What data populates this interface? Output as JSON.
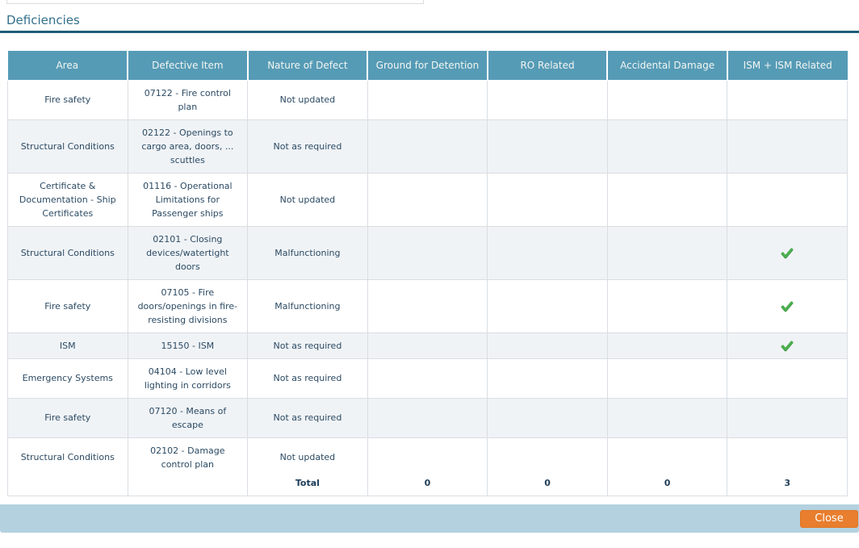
{
  "page": {
    "title": "Deficiencies"
  },
  "table": {
    "columns": [
      {
        "key": "area",
        "label": "Area"
      },
      {
        "key": "defective_item",
        "label": "Defective Item"
      },
      {
        "key": "nature_of_defect",
        "label": "Nature of Defect"
      },
      {
        "key": "ground_for_detention",
        "label": "Ground for Detention"
      },
      {
        "key": "ro_related",
        "label": "RO Related"
      },
      {
        "key": "accidental_damage",
        "label": "Accidental Damage"
      },
      {
        "key": "ism_ism_related",
        "label": "ISM + ISM Related"
      }
    ],
    "rows": [
      {
        "area": "Fire safety",
        "defective_item": "07122 - Fire control plan",
        "nature_of_defect": "Not updated",
        "ground_for_detention": false,
        "ro_related": false,
        "accidental_damage": false,
        "ism_ism_related": false
      },
      {
        "area": "Structural Conditions",
        "defective_item": "02122 - Openings to cargo area, doors, ... scuttles",
        "nature_of_defect": "Not as required",
        "ground_for_detention": false,
        "ro_related": false,
        "accidental_damage": false,
        "ism_ism_related": false
      },
      {
        "area": "Certificate & Documentation - Ship Certificates",
        "defective_item": "01116 - Operational Limitations for Passenger ships",
        "nature_of_defect": "Not updated",
        "ground_for_detention": false,
        "ro_related": false,
        "accidental_damage": false,
        "ism_ism_related": false
      },
      {
        "area": "Structural Conditions",
        "defective_item": "02101 - Closing devices/watertight doors",
        "nature_of_defect": "Malfunctioning",
        "ground_for_detention": false,
        "ro_related": false,
        "accidental_damage": false,
        "ism_ism_related": true
      },
      {
        "area": "Fire safety",
        "defective_item": "07105 - Fire doors/openings in fire-resisting divisions",
        "nature_of_defect": "Malfunctioning",
        "ground_for_detention": false,
        "ro_related": false,
        "accidental_damage": false,
        "ism_ism_related": true
      },
      {
        "area": "ISM",
        "defective_item": "15150 - ISM",
        "nature_of_defect": "Not as required",
        "ground_for_detention": false,
        "ro_related": false,
        "accidental_damage": false,
        "ism_ism_related": true
      },
      {
        "area": "Emergency Systems",
        "defective_item": "04104 - Low level lighting in corridors",
        "nature_of_defect": "Not as required",
        "ground_for_detention": false,
        "ro_related": false,
        "accidental_damage": false,
        "ism_ism_related": false
      },
      {
        "area": "Fire safety",
        "defective_item": "07120 - Means of escape",
        "nature_of_defect": "Not as required",
        "ground_for_detention": false,
        "ro_related": false,
        "accidental_damage": false,
        "ism_ism_related": false
      },
      {
        "area": "Structural Conditions",
        "defective_item": "02102 - Damage control plan",
        "nature_of_defect": "Not updated",
        "ground_for_detention": false,
        "ro_related": false,
        "accidental_damage": false,
        "ism_ism_related": false
      }
    ],
    "total": {
      "nature_of_defect": "Total",
      "ground_for_detention": "0",
      "ro_related": "0",
      "accidental_damage": "0",
      "ism_ism_related": "3"
    }
  },
  "footer": {
    "close_label": "Close"
  },
  "icons": {
    "ism_flag": "checkmark-icon"
  },
  "colors": {
    "header_bg": "#569bb6",
    "header_text": "#f2f6f2",
    "body_text": "#2b4a63",
    "alt_row_bg": "#f0f3f6",
    "cell_border": "#d9dee3",
    "title_text": "#33708c",
    "title_rule": "#1e5c78",
    "footer_bar_bg": "#b3d1df",
    "close_button_bg": "#e87e2e",
    "check_green": "#4caf50"
  }
}
